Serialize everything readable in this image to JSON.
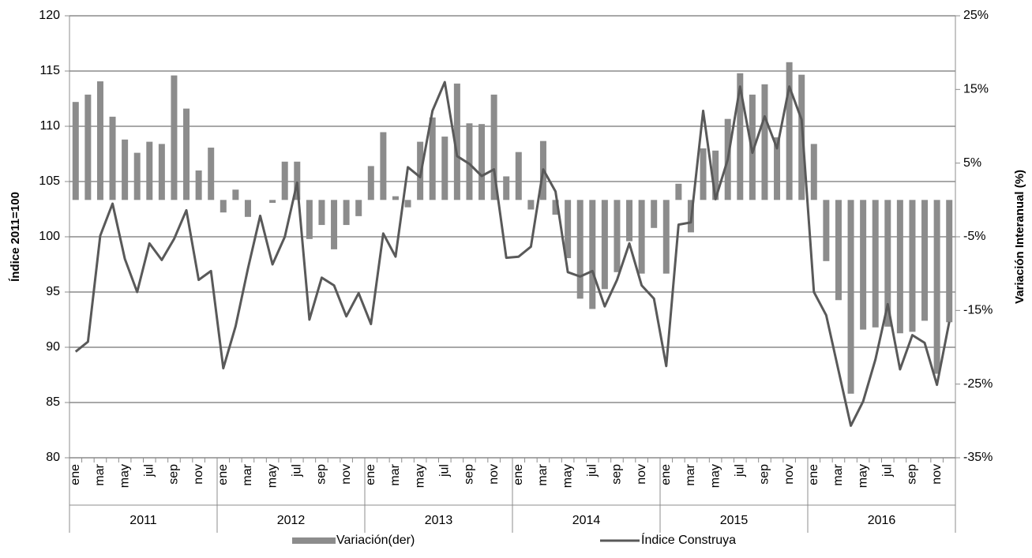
{
  "chart_data": {
    "type": "combo",
    "y_label": "Índice 2011=100",
    "y2_label": "Variación Interanual (%)",
    "categories": [
      "ene",
      null,
      "mar",
      null,
      "may",
      null,
      "jul",
      null,
      "sep",
      null,
      "nov",
      null,
      "ene",
      null,
      "mar",
      null,
      "may",
      null,
      "jul",
      null,
      "sep",
      null,
      "nov",
      null,
      "ene",
      null,
      "mar",
      null,
      "may",
      null,
      "jul",
      null,
      "sep",
      null,
      "nov",
      null,
      "ene",
      null,
      "mar",
      null,
      "may",
      null,
      "jul",
      null,
      "sep",
      null,
      "nov",
      null,
      "ene",
      null,
      "mar",
      null,
      "may",
      null,
      "jul",
      null,
      "sep",
      null,
      "nov",
      null,
      "ene",
      null,
      "mar",
      null,
      "may",
      null,
      "jul",
      null,
      "sep",
      null,
      "nov",
      null
    ],
    "groups": [
      "2011",
      "2012",
      "2013",
      "2014",
      "2015",
      "2016"
    ],
    "ylim": [
      80,
      120
    ],
    "yticks": [
      80,
      85,
      90,
      95,
      100,
      105,
      110,
      115,
      120
    ],
    "y2lim": [
      -35,
      25
    ],
    "y2ticks": [
      {
        "value": -35,
        "label": "-35%"
      },
      {
        "value": -25,
        "label": "-25%"
      },
      {
        "value": -15,
        "label": "-15%"
      },
      {
        "value": -5,
        "label": "-5%"
      },
      {
        "value": 5,
        "label": "5%"
      },
      {
        "value": 15,
        "label": "15%"
      },
      {
        "value": 25,
        "label": "25%"
      }
    ],
    "grid": true,
    "legend": "bottom",
    "series": [
      {
        "name": "Variación(der)",
        "type": "bar",
        "axis": "y2",
        "color": "#8c8c8c",
        "values": [
          13.3,
          14.3,
          16.1,
          11.3,
          8.2,
          6.4,
          7.9,
          7.6,
          16.9,
          12.4,
          4,
          7.1,
          -1.7,
          1.4,
          -2.3,
          0,
          -0.4,
          5.2,
          5.2,
          -5.3,
          -3.4,
          -6.7,
          -3.4,
          -2.2,
          4.6,
          9.2,
          0.5,
          -1,
          7.9,
          11.2,
          8.6,
          15.8,
          10.4,
          10.3,
          14.3,
          3.2,
          6.5,
          -1.3,
          8,
          -2,
          -7.9,
          -13.4,
          -14.8,
          -12.1,
          -9.8,
          -5.6,
          -10,
          -3.8,
          -10,
          2.2,
          -4.4,
          7,
          6.7,
          11,
          17.2,
          14.3,
          15.7,
          8.5,
          18.7,
          17,
          7.6,
          -8.3,
          -13.6,
          -26.3,
          -17.6,
          -17.3,
          -17.2,
          -18.1,
          -17.9,
          -16.4,
          -23.6,
          -16.6
        ]
      },
      {
        "name": "Índice Construya",
        "type": "line",
        "color": "#595959",
        "values": [
          89.6,
          90.5,
          100.1,
          103,
          98,
          95,
          99.4,
          97.9,
          99.8,
          102.4,
          96.1,
          96.9,
          88.1,
          91.9,
          97.1,
          101.9,
          97.5,
          100,
          104.9,
          92.5,
          96.3,
          95.6,
          92.8,
          94.9,
          92.1,
          100.3,
          98.2,
          106.3,
          105.4,
          111.4,
          114,
          107.3,
          106.6,
          105.5,
          106.1,
          98.1,
          98.2,
          99.1,
          106.1,
          104.1,
          96.8,
          96.4,
          96.9,
          93.7,
          96.1,
          99.4,
          95.6,
          94.4,
          88.3,
          101.1,
          101.3,
          111.4,
          103.4,
          107,
          113.6,
          107.6,
          110.9,
          108,
          113.6,
          110.6,
          95,
          92.9,
          87.9,
          82.9,
          85.1,
          88.9,
          93.9,
          88,
          91.1,
          90.4,
          86.6,
          92.3
        ]
      }
    ]
  }
}
